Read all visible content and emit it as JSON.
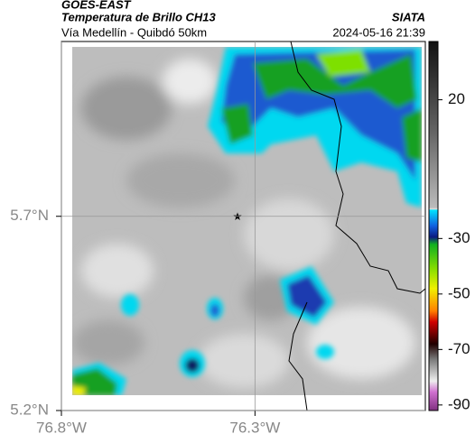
{
  "header": {
    "satellite": "GOES-EAST",
    "product": "Temperatura de Brillo CH13",
    "region": "Vía Medellín - Quibdó 50km",
    "source": "SIATA",
    "datetime": "2024-05-16 21:39"
  },
  "map": {
    "lon_range": [
      -76.8,
      -75.86
    ],
    "lat_range": [
      5.2,
      6.15
    ],
    "lon_ticks": [
      {
        "value": -76.8,
        "label": "76.8°W"
      },
      {
        "value": -76.3,
        "label": "76.3°W"
      }
    ],
    "lat_ticks": [
      {
        "value": 5.2,
        "label": "5.2°N"
      },
      {
        "value": 5.7,
        "label": "5.7°N"
      }
    ],
    "grid": true
  },
  "colorbar": {
    "range": [
      -92,
      41
    ],
    "ticks": [
      20,
      -30,
      -50,
      -70,
      -90
    ]
  }
}
